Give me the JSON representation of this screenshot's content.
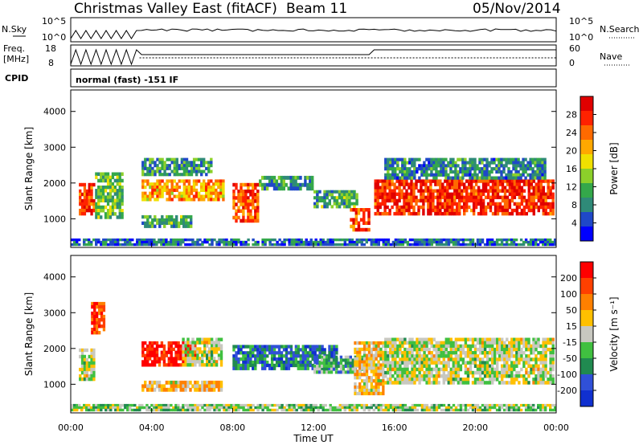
{
  "header": {
    "title": "Christmas Valley East (fitACF)",
    "beam": "Beam 11",
    "date": "05/Nov/2014"
  },
  "sky_panel": {
    "left_label": "N.Sky",
    "right_label": "N.Search",
    "left_ticks": [
      "10^5",
      "10^0"
    ],
    "right_ticks": [
      "10^5",
      "10^0"
    ]
  },
  "freq_panel": {
    "left_label_1": "Freq.",
    "left_label_2": "[MHz]",
    "right_label": "Nave",
    "left_ticks": [
      "18",
      "8"
    ],
    "right_ticks": [
      "60",
      "0"
    ]
  },
  "cpid": {
    "label": "CPID",
    "mode": "normal (fast) -151 IF"
  },
  "power_panel": {
    "ylabel": "Slant Range [km]",
    "yticks": [
      "4000",
      "3000",
      "2000",
      "1000"
    ],
    "colorbar_label": "Power [dB]",
    "colorbar_ticks": [
      "28",
      "24",
      "20",
      "16",
      "12",
      "8",
      "4"
    ],
    "colors": [
      "#0000ff",
      "#1f48c8",
      "#2f8a78",
      "#34a84a",
      "#8cd02a",
      "#f0e000",
      "#ffa800",
      "#ff6a00",
      "#ff2200",
      "#e00000"
    ]
  },
  "velocity_panel": {
    "ylabel": "Slant Range [km]",
    "yticks": [
      "4000",
      "3000",
      "2000",
      "1000"
    ],
    "colorbar_label": "Velocity [m s⁻¹]",
    "colorbar_ticks": [
      "200",
      "100",
      "50",
      "15",
      "-15",
      "-50",
      "-100",
      "-200"
    ],
    "colors": [
      "#1030d0",
      "#3050d8",
      "#208a50",
      "#40c040",
      "#c8c8c0",
      "#ffc000",
      "#ff8000",
      "#ff4000",
      "#ff0000"
    ]
  },
  "x_axis": {
    "label": "Time UT",
    "ticks": [
      "00:00",
      "04:00",
      "08:00",
      "12:00",
      "16:00",
      "20:00",
      "00:00"
    ]
  },
  "chart_data": {
    "type": "heatmap",
    "title": "Christmas Valley East (fitACF)",
    "subtitle": "Beam 11  05/Nov/2014",
    "xlabel": "Time UT",
    "ylabel": "Slant Range [km]",
    "x_range_hours": [
      0,
      24
    ],
    "y_range_km": [
      200,
      4600
    ],
    "panels": [
      {
        "name": "Power",
        "unit": "dB",
        "scale": [
          0,
          30
        ],
        "regions": [
          {
            "t": [
              0.4,
              1.2
            ],
            "r": [
              1100,
              2000
            ],
            "v": 25
          },
          {
            "t": [
              1.2,
              2.6
            ],
            "r": [
              1000,
              2300
            ],
            "v": 12
          },
          {
            "t": [
              3.5,
              7.6
            ],
            "r": [
              1500,
              2100
            ],
            "v": 20
          },
          {
            "t": [
              3.5,
              7.0
            ],
            "r": [
              2200,
              2700
            ],
            "v": 9
          },
          {
            "t": [
              3.5,
              6.0
            ],
            "r": [
              750,
              1100
            ],
            "v": 10
          },
          {
            "t": [
              8.0,
              9.3
            ],
            "r": [
              900,
              2000
            ],
            "v": 24
          },
          {
            "t": [
              9.3,
              12.0
            ],
            "r": [
              1800,
              2200
            ],
            "v": 8
          },
          {
            "t": [
              12.0,
              14.2
            ],
            "r": [
              1300,
              1800
            ],
            "v": 10
          },
          {
            "t": [
              13.8,
              14.8
            ],
            "r": [
              650,
              1300
            ],
            "v": 24
          },
          {
            "t": [
              15.0,
              23.9
            ],
            "r": [
              1100,
              2100
            ],
            "v": 26
          },
          {
            "t": [
              15.5,
              23.5
            ],
            "r": [
              2100,
              2700
            ],
            "v": 8
          },
          {
            "t": [
              0.0,
              24.0
            ],
            "r": [
              250,
              450
            ],
            "v": 6
          }
        ]
      },
      {
        "name": "Velocity",
        "unit": "m/s",
        "scale": [
          -200,
          200
        ],
        "regions": [
          {
            "t": [
              0.4,
              1.2
            ],
            "r": [
              1100,
              2000
            ],
            "v": 0
          },
          {
            "t": [
              1.0,
              1.7
            ],
            "r": [
              2400,
              3300
            ],
            "v": 150
          },
          {
            "t": [
              3.5,
              6.2
            ],
            "r": [
              1500,
              2200
            ],
            "v": 180
          },
          {
            "t": [
              5.5,
              7.5
            ],
            "r": [
              1500,
              2300
            ],
            "v": 0
          },
          {
            "t": [
              3.5,
              7.5
            ],
            "r": [
              800,
              1100
            ],
            "v": 40
          },
          {
            "t": [
              8.0,
              13.2
            ],
            "r": [
              1400,
              2100
            ],
            "v": -110
          },
          {
            "t": [
              12.0,
              14.6
            ],
            "r": [
              1300,
              1800
            ],
            "v": -60
          },
          {
            "t": [
              14.0,
              15.5
            ],
            "r": [
              700,
              2200
            ],
            "v": 40
          },
          {
            "t": [
              15.5,
              23.9
            ],
            "r": [
              1000,
              2300
            ],
            "v": 0
          },
          {
            "t": [
              0.0,
              24.0
            ],
            "r": [
              250,
              450
            ],
            "v": -20
          }
        ]
      }
    ]
  }
}
